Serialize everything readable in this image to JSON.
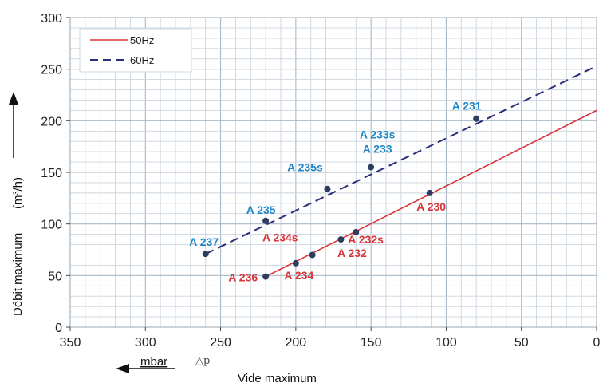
{
  "chart_data": {
    "type": "line",
    "xlabel": "Vide maximum",
    "x_unit": "mbar",
    "x_symbol": "△p",
    "ylabel": "Débit maximum",
    "y_unit": "(m³/h)",
    "xlim": [
      350,
      0
    ],
    "ylim": [
      0,
      300
    ],
    "x_reversed": true,
    "x_ticks": [
      350,
      300,
      250,
      200,
      150,
      100,
      50,
      0
    ],
    "y_ticks": [
      0,
      50,
      100,
      150,
      200,
      250,
      300
    ],
    "grid": true,
    "legend_position": "top-left",
    "series": [
      {
        "name": "50Hz",
        "color": "#d8353a",
        "dash": "solid",
        "x": [
          220,
          0
        ],
        "y": [
          49,
          210
        ]
      },
      {
        "name": "60Hz",
        "color": "#2b2e7a",
        "dash": "dashed",
        "x": [
          260,
          0
        ],
        "y": [
          71,
          253
        ]
      }
    ],
    "points": [
      {
        "label": "A 236",
        "x": 220,
        "y": 49,
        "series": "50Hz"
      },
      {
        "label": "A 234",
        "x": 200,
        "y": 62,
        "series": "50Hz"
      },
      {
        "label": "A 234s",
        "x": 189,
        "y": 70,
        "series": "50Hz"
      },
      {
        "label": "A 232",
        "x": 170,
        "y": 85,
        "series": "50Hz"
      },
      {
        "label": "A 232s",
        "x": 160,
        "y": 92,
        "series": "50Hz"
      },
      {
        "label": "A 230",
        "x": 111,
        "y": 130,
        "series": "50Hz"
      },
      {
        "label": "A 237",
        "x": 260,
        "y": 71,
        "series": "60Hz"
      },
      {
        "label": "A 235",
        "x": 220,
        "y": 103,
        "series": "60Hz"
      },
      {
        "label": "A 235s",
        "x": 179,
        "y": 134,
        "series": "60Hz"
      },
      {
        "label": "A 233s",
        "x": 150,
        "y": 155,
        "series": "60Hz"
      },
      {
        "label": "A 233",
        "x": 150,
        "y": 155,
        "series": "60Hz"
      },
      {
        "label": "A 231",
        "x": 80,
        "y": 202,
        "series": "60Hz"
      }
    ],
    "marker_color": "#2c3e5f",
    "label_colors": {
      "50Hz": "#d8353a",
      "60Hz": "#1f86c8"
    }
  }
}
